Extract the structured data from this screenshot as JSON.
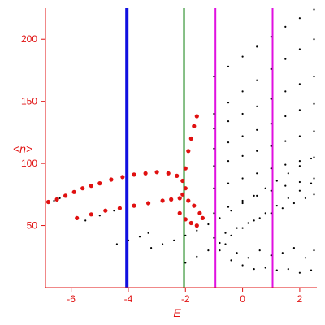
{
  "chart_data": {
    "type": "scatter",
    "title": "",
    "xlabel": "E",
    "ylabel": "<n>",
    "xlim": [
      -6.9,
      2.6
    ],
    "ylim": [
      0,
      225
    ],
    "x_ticks": [
      -6,
      -4,
      -2,
      0,
      2
    ],
    "x_tick_labels": [
      "-6",
      "-4",
      "-2",
      "0",
      "2"
    ],
    "y_ticks": [
      50,
      100,
      150,
      200
    ],
    "y_tick_labels": [
      "50",
      "100",
      "150",
      "200"
    ],
    "grid": false,
    "legend": "none",
    "colors": {
      "axis": "#e01010",
      "black_points": "#000000",
      "red_points": "#e01010",
      "blue_line": "#1010e0",
      "green_line": "#108010",
      "magenta_line": "#e010e0"
    },
    "vertical_lines": [
      {
        "x": -4.05,
        "color": "#1010e0",
        "width": "thick"
      },
      {
        "x": -2.05,
        "color": "#108010",
        "width": "medium"
      },
      {
        "x": -0.95,
        "color": "#e010e0",
        "width": "medium"
      },
      {
        "x": 1.05,
        "color": "#e010e0",
        "width": "medium"
      }
    ],
    "series": [
      {
        "color": "black",
        "points": [
          [
            -6.8,
            68
          ],
          [
            -6.6,
            70
          ],
          [
            -6.4,
            72
          ],
          [
            -5.5,
            54
          ],
          [
            -5.0,
            58
          ],
          [
            -4.5,
            62
          ],
          [
            -4.4,
            35
          ],
          [
            -4.0,
            38
          ],
          [
            -3.6,
            41
          ],
          [
            -3.3,
            44
          ],
          [
            -3.2,
            32
          ],
          [
            -2.8,
            35
          ],
          [
            -2.4,
            38
          ],
          [
            -2.0,
            42
          ],
          [
            -1.6,
            46
          ],
          [
            -1.2,
            51
          ],
          [
            -0.8,
            56
          ],
          [
            -0.4,
            62
          ],
          [
            0.0,
            68
          ],
          [
            0.4,
            74
          ],
          [
            0.8,
            80
          ],
          [
            1.2,
            86
          ],
          [
            1.6,
            92
          ],
          [
            2.0,
            98
          ],
          [
            2.4,
            104
          ],
          [
            -2.0,
            20
          ],
          [
            -1.6,
            25
          ],
          [
            -1.2,
            30
          ],
          [
            -0.8,
            36
          ],
          [
            -0.4,
            42
          ],
          [
            0.0,
            48
          ],
          [
            0.4,
            54
          ],
          [
            0.8,
            60
          ],
          [
            1.2,
            66
          ],
          [
            1.6,
            72
          ],
          [
            2.0,
            78
          ],
          [
            2.4,
            84
          ],
          [
            -1.0,
            170
          ],
          [
            -0.5,
            178
          ],
          [
            0.0,
            186
          ],
          [
            0.5,
            194
          ],
          [
            1.0,
            202
          ],
          [
            1.5,
            210
          ],
          [
            2.0,
            217
          ],
          [
            2.5,
            224
          ],
          [
            -1.0,
            140
          ],
          [
            -0.5,
            149
          ],
          [
            0.0,
            158
          ],
          [
            0.5,
            167
          ],
          [
            1.0,
            176
          ],
          [
            1.5,
            184
          ],
          [
            2.0,
            192
          ],
          [
            2.5,
            200
          ],
          [
            -1.0,
            128
          ],
          [
            -0.5,
            134
          ],
          [
            0.0,
            140
          ],
          [
            0.5,
            146
          ],
          [
            1.0,
            152
          ],
          [
            1.5,
            158
          ],
          [
            2.0,
            164
          ],
          [
            2.5,
            170
          ],
          [
            -1.0,
            112
          ],
          [
            -0.5,
            117
          ],
          [
            0.0,
            122
          ],
          [
            0.5,
            127
          ],
          [
            1.0,
            132
          ],
          [
            1.5,
            138
          ],
          [
            2.0,
            143
          ],
          [
            2.5,
            148
          ],
          [
            -1.0,
            98
          ],
          [
            -0.5,
            102
          ],
          [
            0.0,
            106
          ],
          [
            0.5,
            110
          ],
          [
            1.0,
            114
          ],
          [
            1.5,
            118
          ],
          [
            2.0,
            122
          ],
          [
            2.5,
            126
          ],
          [
            -1.0,
            80
          ],
          [
            -0.5,
            84
          ],
          [
            0.0,
            88
          ],
          [
            0.5,
            92
          ],
          [
            1.0,
            96
          ],
          [
            1.5,
            99
          ],
          [
            2.0,
            102
          ],
          [
            2.5,
            105
          ],
          [
            -1.0,
            60
          ],
          [
            -0.5,
            65
          ],
          [
            0.0,
            70
          ],
          [
            0.5,
            74
          ],
          [
            1.0,
            78
          ],
          [
            1.5,
            82
          ],
          [
            2.0,
            85
          ],
          [
            2.5,
            88
          ],
          [
            -1.0,
            40
          ],
          [
            -0.6,
            44
          ],
          [
            -0.2,
            48
          ],
          [
            0.2,
            52
          ],
          [
            0.6,
            56
          ],
          [
            1.0,
            60
          ],
          [
            1.4,
            64
          ],
          [
            1.8,
            68
          ],
          [
            2.2,
            72
          ],
          [
            2.5,
            75
          ],
          [
            -0.8,
            30
          ],
          [
            -0.4,
            22
          ],
          [
            0.0,
            18
          ],
          [
            0.4,
            15
          ],
          [
            0.8,
            16
          ],
          [
            1.2,
            14
          ],
          [
            1.6,
            15
          ],
          [
            2.0,
            12
          ],
          [
            2.4,
            14
          ],
          [
            -0.6,
            35
          ],
          [
            -0.2,
            28
          ],
          [
            0.2,
            24
          ],
          [
            0.6,
            30
          ],
          [
            1.0,
            26
          ],
          [
            1.4,
            28
          ],
          [
            1.8,
            32
          ],
          [
            2.2,
            24
          ],
          [
            2.5,
            30
          ]
        ]
      },
      {
        "color": "red",
        "points": [
          [
            -6.8,
            69
          ],
          [
            -6.5,
            71
          ],
          [
            -6.2,
            74
          ],
          [
            -5.9,
            77
          ],
          [
            -5.6,
            80
          ],
          [
            -5.3,
            82
          ],
          [
            -5.0,
            84
          ],
          [
            -4.6,
            87
          ],
          [
            -4.2,
            89
          ],
          [
            -3.8,
            91
          ],
          [
            -3.4,
            92
          ],
          [
            -3.0,
            93
          ],
          [
            -2.6,
            92
          ],
          [
            -2.3,
            90
          ],
          [
            -2.1,
            86
          ],
          [
            -2.0,
            80
          ],
          [
            -2.1,
            75
          ],
          [
            -5.8,
            56
          ],
          [
            -5.3,
            59
          ],
          [
            -4.8,
            62
          ],
          [
            -4.3,
            64
          ],
          [
            -3.8,
            66
          ],
          [
            -3.3,
            68
          ],
          [
            -2.8,
            70
          ],
          [
            -2.5,
            71
          ],
          [
            -2.2,
            72
          ],
          [
            -1.9,
            70
          ],
          [
            -1.7,
            66
          ],
          [
            -1.5,
            60
          ],
          [
            -1.4,
            56
          ],
          [
            -2.0,
            96
          ],
          [
            -1.9,
            110
          ],
          [
            -1.8,
            120
          ],
          [
            -1.7,
            130
          ],
          [
            -1.6,
            138
          ],
          [
            -2.2,
            60
          ],
          [
            -2.0,
            55
          ],
          [
            -1.8,
            52
          ],
          [
            -1.6,
            50
          ]
        ]
      }
    ]
  }
}
